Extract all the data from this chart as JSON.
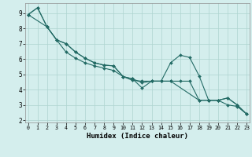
{
  "xlabel": "Humidex (Indice chaleur)",
  "background_color": "#d4eeed",
  "grid_color": "#aed4d0",
  "line_color": "#236b65",
  "xlim": [
    -0.3,
    23.3
  ],
  "ylim": [
    1.85,
    9.65
  ],
  "yticks": [
    2,
    3,
    4,
    5,
    6,
    7,
    8,
    9
  ],
  "xticks": [
    0,
    1,
    2,
    3,
    4,
    5,
    6,
    7,
    8,
    9,
    10,
    11,
    12,
    13,
    14,
    15,
    16,
    17,
    18,
    19,
    20,
    21,
    22,
    23
  ],
  "series1_x": [
    0,
    1,
    2,
    3,
    4,
    5,
    6,
    7,
    8,
    9,
    10,
    11,
    12,
    13,
    14,
    15,
    16,
    17,
    18,
    19,
    20,
    21,
    22,
    23
  ],
  "series1_y": [
    8.9,
    9.35,
    8.1,
    7.25,
    7.0,
    6.45,
    6.05,
    5.75,
    5.6,
    5.55,
    4.85,
    4.7,
    4.1,
    4.55,
    4.55,
    5.75,
    6.25,
    6.1,
    4.9,
    3.3,
    3.3,
    3.45,
    3.0,
    2.4
  ],
  "series2_x": [
    0,
    1,
    2,
    3,
    4,
    5,
    6,
    7,
    8,
    9,
    10,
    11,
    12,
    13,
    14,
    15,
    16,
    17,
    18,
    19,
    20,
    21,
    22,
    23
  ],
  "series2_y": [
    8.9,
    9.35,
    8.1,
    7.25,
    7.0,
    6.45,
    6.05,
    5.75,
    5.6,
    5.55,
    4.85,
    4.7,
    4.45,
    4.55,
    4.55,
    4.55,
    4.55,
    4.55,
    3.3,
    3.3,
    3.3,
    3.45,
    3.0,
    2.4
  ],
  "series3_x": [
    0,
    2,
    3,
    4,
    5,
    6,
    7,
    8,
    9,
    10,
    11,
    12,
    13,
    14,
    15,
    18,
    19,
    20,
    21,
    22,
    23
  ],
  "series3_y": [
    8.9,
    8.1,
    7.25,
    6.45,
    6.05,
    5.75,
    5.55,
    5.4,
    5.25,
    4.85,
    4.6,
    4.55,
    4.55,
    4.55,
    4.55,
    3.3,
    3.3,
    3.3,
    3.0,
    2.9,
    2.4
  ]
}
